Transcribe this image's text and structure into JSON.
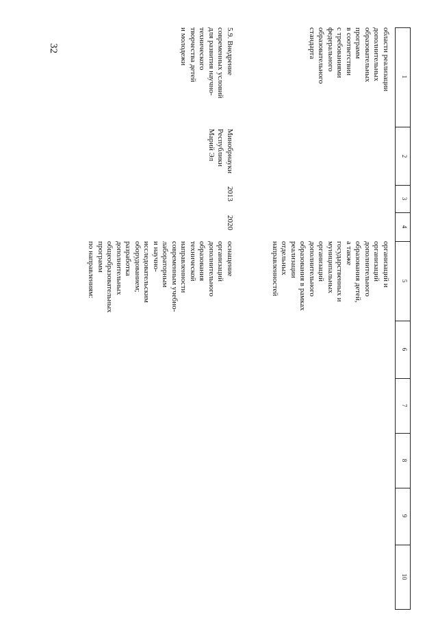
{
  "page_number": "32",
  "columns": [
    "1",
    "2",
    "3",
    "4",
    "5",
    "6",
    "7",
    "8",
    "9",
    "10"
  ],
  "row1": {
    "col1": [
      "области реализации",
      "дополнительных",
      "образовательных",
      "программ",
      "в соответствии",
      "с требованиями",
      "федерального",
      "образовательного",
      "стандарта"
    ],
    "col5": [
      "организаций и",
      "организаций",
      "дополнительного",
      "образования детей,",
      "а также",
      "государственных и",
      "муниципальных",
      "организаций",
      "дополнительного",
      "образования в рамках",
      "реализации",
      "отдельных",
      "направленностей"
    ]
  },
  "row2": {
    "col1": [
      "5.9. Внедрение",
      "современных условий",
      "для развития научно-",
      "технического",
      "творчества детей",
      "и молодежи"
    ],
    "col2": [
      "Минобрнауки",
      "Республики",
      "Марий Эл"
    ],
    "col3": "2013",
    "col4": "2020",
    "col5": [
      "оснащение",
      "организаций",
      "дополнительного",
      "образования",
      "технической",
      "направленности",
      "современным учебно-",
      "лабораторным",
      "и научно-",
      "исследовательским",
      "оборудованием;",
      "разработка",
      "дополнительных",
      "общеобразовательных",
      "программ",
      "по направлениям:"
    ]
  }
}
